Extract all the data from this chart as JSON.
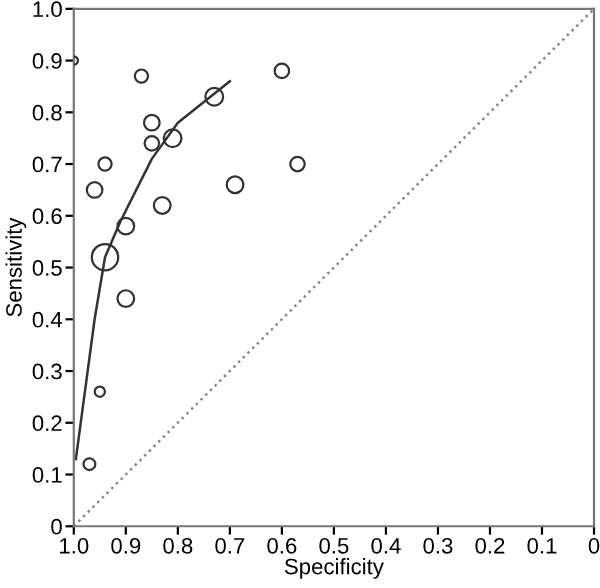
{
  "chart_data": {
    "type": "bubble",
    "xlabel": "Specificity",
    "ylabel": "Sensitivity",
    "xlim": [
      1,
      0
    ],
    "ylim": [
      0,
      1
    ],
    "xticks": [
      {
        "value": 1,
        "label": "1.0"
      },
      0.9,
      0.8,
      0.7,
      0.6,
      0.5,
      0.4,
      0.3,
      0.2,
      0.1,
      0
    ],
    "yticks": [
      0,
      0.1,
      0.2,
      0.3,
      0.4,
      0.5,
      0.6,
      0.7,
      0.8,
      0.9,
      {
        "value": 1,
        "label": "1.0"
      }
    ],
    "grid": false,
    "series": [
      {
        "color": "#333333",
        "x": [
          1.0,
          0.87,
          0.73,
          0.6,
          0.85,
          0.85,
          0.81,
          0.94,
          0.96,
          0.57,
          0.69,
          0.83,
          0.9,
          0.94,
          0.9,
          0.95,
          0.97
        ],
        "values": [
          0.9,
          0.87,
          0.83,
          0.88,
          0.78,
          0.74,
          0.75,
          0.7,
          0.65,
          0.7,
          0.66,
          0.62,
          0.58,
          0.52,
          0.44,
          0.26,
          0.12
        ],
        "sizes": [
          0.1,
          0.25,
          0.45,
          0.3,
          0.35,
          0.3,
          0.45,
          0.25,
          0.35,
          0.3,
          0.4,
          0.4,
          0.4,
          1,
          0.4,
          0.15,
          0.2
        ]
      },
      {
        "type": "line",
        "color": "#333333",
        "line_style": "solid",
        "x": [
          0.996,
          0.98,
          0.96,
          0.94,
          0.91,
          0.85,
          0.8,
          0.7
        ],
        "values": [
          0.13,
          0.25,
          0.4,
          0.52,
          0.59,
          0.71,
          0.78,
          0.86
        ]
      },
      {
        "type": "line",
        "color": "#888888",
        "line_style": "dotted",
        "x": [
          1,
          0
        ],
        "values": [
          0,
          1
        ]
      }
    ]
  }
}
